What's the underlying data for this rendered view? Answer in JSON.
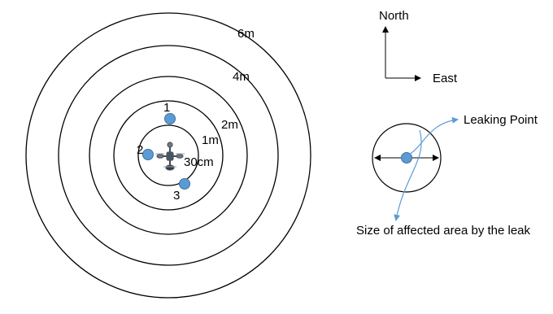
{
  "rings": [
    {
      "label": "30cm"
    },
    {
      "label": "1m"
    },
    {
      "label": "2m"
    },
    {
      "label": "4m"
    },
    {
      "label": "6m"
    }
  ],
  "sensors": [
    {
      "label": "1"
    },
    {
      "label": "2"
    },
    {
      "label": "3"
    }
  ],
  "compass": {
    "north": "North",
    "east": "East"
  },
  "legend": {
    "leaking_point": "Leaking Point",
    "affected_area": "Size of affected area by the leak"
  },
  "colors": {
    "sensor_fill": "#5b9bd5",
    "sensor_stroke": "#41719c",
    "ring_stroke": "#000000",
    "callout": "#5b9bd5"
  },
  "icons": {
    "drone": "quadcopter-drone-icon"
  }
}
